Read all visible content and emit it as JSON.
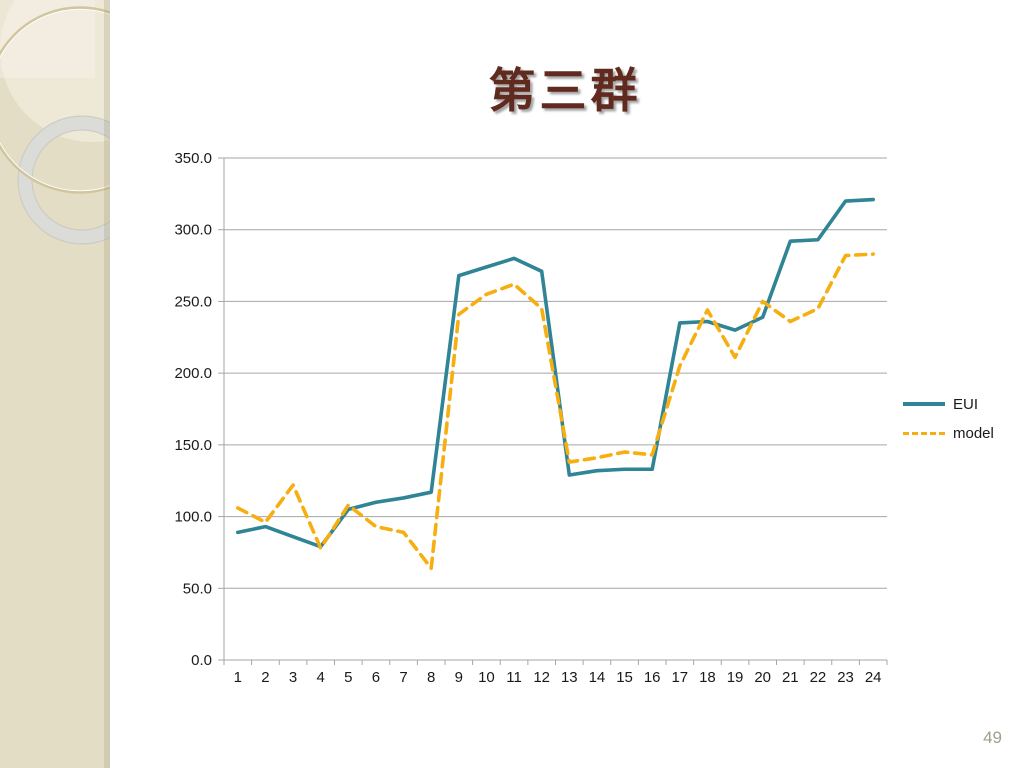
{
  "slide": {
    "title": "第三群",
    "page_number": "49"
  },
  "legend": {
    "eui_label": "EUI",
    "model_label": "model"
  },
  "chart_data": {
    "type": "line",
    "title": "第三群",
    "x": [
      1,
      2,
      3,
      4,
      5,
      6,
      7,
      8,
      9,
      10,
      11,
      12,
      13,
      14,
      15,
      16,
      17,
      18,
      19,
      20,
      21,
      22,
      23,
      24
    ],
    "series": [
      {
        "name": "EUI",
        "color": "#2f8495",
        "style": "solid",
        "values": [
          89,
          93,
          86,
          79,
          105,
          110,
          113,
          117,
          268,
          274,
          280,
          271,
          129,
          132,
          133,
          133,
          235,
          236,
          230,
          239,
          292,
          293,
          320,
          321
        ]
      },
      {
        "name": "model",
        "color": "#f6ae10",
        "style": "dashed",
        "values": [
          106,
          96,
          122,
          78,
          108,
          93,
          89,
          64,
          241,
          255,
          262,
          245,
          138,
          141,
          145,
          143,
          205,
          244,
          211,
          250,
          236,
          245,
          282,
          283
        ]
      }
    ],
    "ylim": [
      0,
      350
    ],
    "ytick_step": 50,
    "ytick_labels": [
      "0.0",
      "50.0",
      "100.0",
      "150.0",
      "200.0",
      "250.0",
      "300.0",
      "350.0"
    ],
    "grid": true,
    "axis_color": "#a6a6a6",
    "label_color": "#1a1a1a",
    "legend_position": "right"
  }
}
